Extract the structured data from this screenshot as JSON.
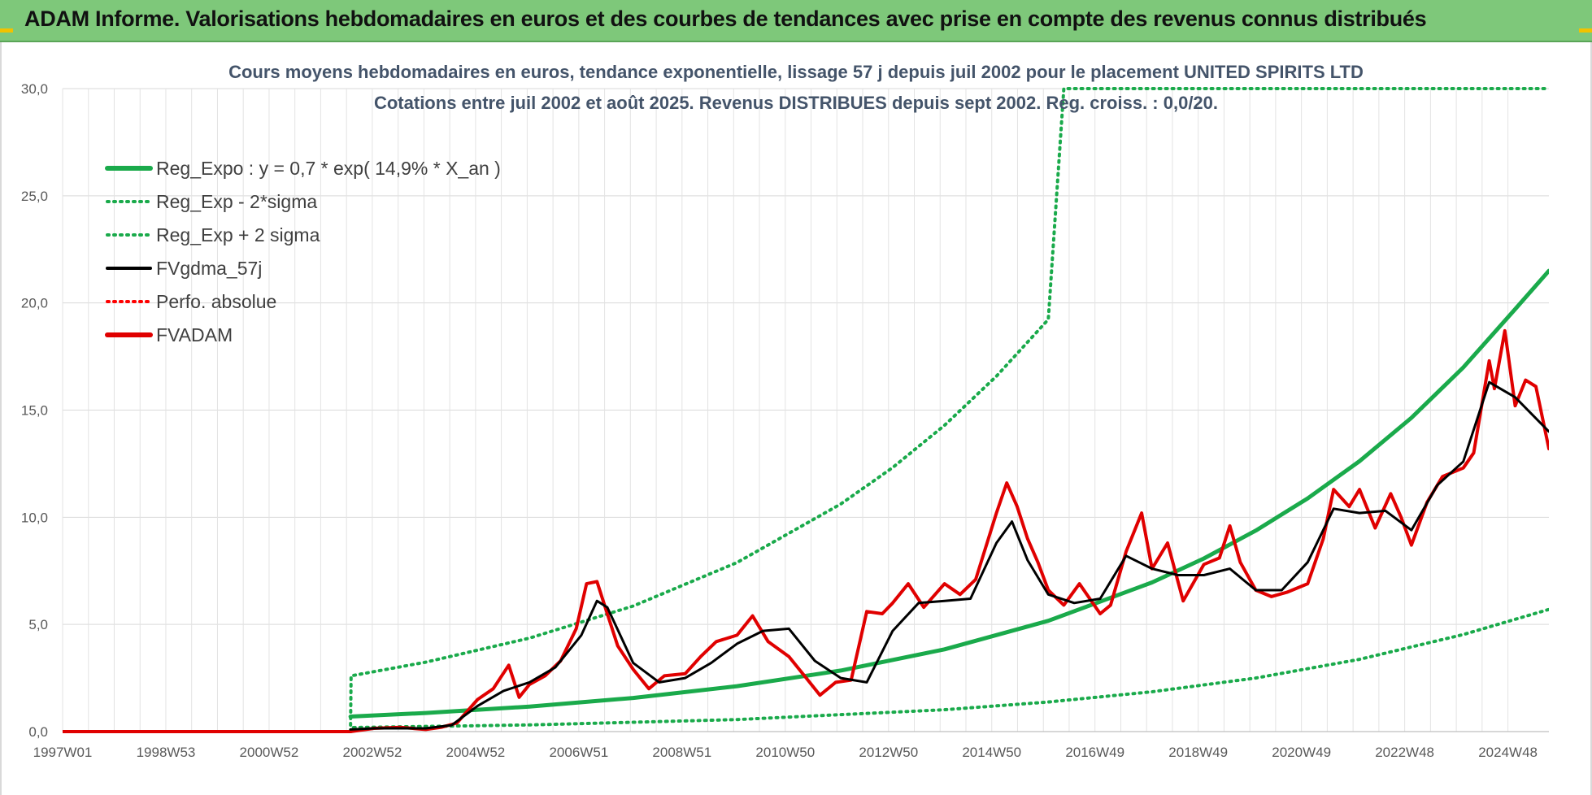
{
  "banner": {
    "title": "ADAM Informe. Valorisations hebdomadaires en euros et des courbes de tendances avec prise en compte des revenus connus distribués",
    "color": "#7ec87a"
  },
  "chart_data": {
    "type": "line",
    "title": "Cours moyens hebdomadaires en euros, tendance exponentielle, lissage 57 j depuis juil 2002 pour le placement UNITED SPIRITS LTD",
    "subtitle": "Cotations entre juil 2002 et août 2025. Revenus DISTRIBUES depuis sept 2002. Reg. croiss. : 0,0/20.",
    "xlabel": "",
    "ylabel": "",
    "ylim": [
      0,
      30
    ],
    "xlim": [
      1997.0,
      2025.65
    ],
    "yticks": [
      "0,0",
      "5,0",
      "10,0",
      "15,0",
      "20,0",
      "25,0",
      "30,0"
    ],
    "x_tick_labels": [
      "1997W01",
      "1998W53",
      "2000W52",
      "2002W52",
      "2004W52",
      "2006W51",
      "2008W51",
      "2010W50",
      "2012W50",
      "2014W50",
      "2016W49",
      "2018W49",
      "2020W49",
      "2022W48",
      "2024W48"
    ],
    "grid": true,
    "legend_position": "top-left",
    "series": [
      {
        "name": "Reg_Expo : y = 0,7 * exp( 14,9% *  X_an )",
        "color": "#1aaa4b",
        "style": "solid",
        "x": [
          2002.55,
          2004,
          2006,
          2008,
          2010,
          2012,
          2014,
          2016,
          2018,
          2019,
          2020,
          2021,
          2022,
          2023,
          2024,
          2025,
          2025.65
        ],
        "y": [
          0.7,
          0.87,
          1.17,
          1.57,
          2.12,
          2.85,
          3.84,
          5.17,
          6.96,
          8.08,
          9.38,
          10.88,
          12.62,
          14.64,
          16.99,
          19.71,
          21.5
        ]
      },
      {
        "name": "Reg_Exp - 2*sigma",
        "color": "#1aaa4b",
        "style": "dotted",
        "x": [
          2002.55,
          2002.56,
          2006,
          2010,
          2014,
          2016,
          2018,
          2020,
          2022,
          2024,
          2025.65
        ],
        "y": [
          0.0,
          0.19,
          0.31,
          0.56,
          1.02,
          1.38,
          1.86,
          2.5,
          3.37,
          4.53,
          5.7
        ]
      },
      {
        "name": "Reg_Exp + 2 sigma",
        "color": "#1aaa4b",
        "style": "dotted",
        "x": [
          2002.55,
          2002.56,
          2004,
          2006,
          2008,
          2010,
          2012,
          2013,
          2014,
          2015,
          2016,
          2016.3,
          2021.5,
          2025.65
        ],
        "y": [
          0.0,
          2.6,
          3.24,
          4.36,
          5.86,
          7.89,
          10.62,
          12.32,
          14.29,
          16.58,
          19.23,
          30.0,
          30.0,
          30.0
        ]
      },
      {
        "name": "FVgdma_57j",
        "color": "#000000",
        "style": "solid",
        "x": [
          2002.55,
          2003,
          2004,
          2004.5,
          2005,
          2005.5,
          2006,
          2006.5,
          2007,
          2007.3,
          2007.5,
          2008,
          2008.5,
          2009,
          2009.5,
          2010,
          2010.5,
          2011,
          2011.5,
          2012,
          2012.5,
          2013,
          2013.5,
          2014,
          2014.5,
          2015,
          2015.3,
          2015.6,
          2016,
          2016.5,
          2017,
          2017.5,
          2018,
          2018.5,
          2019,
          2019.5,
          2020,
          2020.5,
          2021,
          2021.5,
          2022,
          2022.5,
          2023,
          2023.5,
          2024,
          2024.5,
          2025,
          2025.65
        ],
        "y": [
          0.1,
          0.15,
          0.15,
          0.3,
          1.2,
          1.9,
          2.3,
          3.0,
          4.5,
          6.1,
          5.8,
          3.2,
          2.3,
          2.5,
          3.2,
          4.1,
          4.7,
          4.8,
          3.3,
          2.5,
          2.3,
          4.7,
          6.0,
          6.1,
          6.2,
          8.8,
          9.8,
          8.0,
          6.4,
          6.0,
          6.2,
          8.2,
          7.6,
          7.3,
          7.3,
          7.6,
          6.6,
          6.6,
          7.9,
          10.4,
          10.2,
          10.3,
          9.4,
          11.5,
          12.6,
          16.3,
          15.6,
          14.0
        ]
      },
      {
        "name": "Perfo. absolue",
        "color": "#ff0000",
        "style": "dotted",
        "x": [
          1997.0,
          2002.55
        ],
        "y": [
          0.0,
          0.0
        ]
      },
      {
        "name": "FVADAM",
        "color": "#e00000",
        "style": "solid",
        "x": [
          1997.0,
          2002.55,
          2003,
          2003.5,
          2004,
          2004.3,
          2004.6,
          2005,
          2005.3,
          2005.6,
          2005.8,
          2006,
          2006.3,
          2006.6,
          2006.9,
          2007.1,
          2007.3,
          2007.5,
          2007.7,
          2008,
          2008.3,
          2008.6,
          2009,
          2009.3,
          2009.6,
          2010,
          2010.3,
          2010.6,
          2011,
          2011.3,
          2011.6,
          2011.9,
          2012.2,
          2012.5,
          2012.8,
          2013,
          2013.3,
          2013.6,
          2014,
          2014.3,
          2014.6,
          2015,
          2015.2,
          2015.4,
          2015.6,
          2015.8,
          2016,
          2016.3,
          2016.6,
          2017,
          2017.2,
          2017.5,
          2017.8,
          2018,
          2018.3,
          2018.6,
          2019,
          2019.3,
          2019.5,
          2019.7,
          2020,
          2020.3,
          2020.6,
          2021,
          2021.3,
          2021.5,
          2021.8,
          2022,
          2022.3,
          2022.6,
          2022.8,
          2023,
          2023.3,
          2023.6,
          2024,
          2024.2,
          2024.5,
          2024.6,
          2024.8,
          2025,
          2025.2,
          2025.4,
          2025.65
        ],
        "y": [
          0.0,
          0.0,
          0.15,
          0.2,
          0.1,
          0.2,
          0.4,
          1.5,
          2.0,
          3.1,
          1.6,
          2.2,
          2.6,
          3.3,
          4.8,
          6.9,
          7.0,
          5.5,
          4.0,
          2.9,
          2.0,
          2.6,
          2.7,
          3.5,
          4.2,
          4.5,
          5.4,
          4.2,
          3.5,
          2.6,
          1.7,
          2.3,
          2.4,
          5.6,
          5.5,
          6.0,
          6.9,
          5.8,
          6.9,
          6.4,
          7.1,
          10.2,
          11.6,
          10.5,
          9.0,
          7.9,
          6.6,
          5.9,
          6.9,
          5.5,
          5.9,
          8.4,
          10.2,
          7.6,
          8.8,
          6.1,
          7.8,
          8.1,
          9.6,
          7.9,
          6.6,
          6.3,
          6.5,
          6.9,
          9.0,
          11.3,
          10.5,
          11.3,
          9.5,
          11.1,
          10.0,
          8.7,
          10.7,
          11.9,
          12.3,
          13.0,
          17.3,
          16.0,
          18.7,
          15.2,
          16.4,
          16.1,
          13.2
        ]
      }
    ]
  }
}
